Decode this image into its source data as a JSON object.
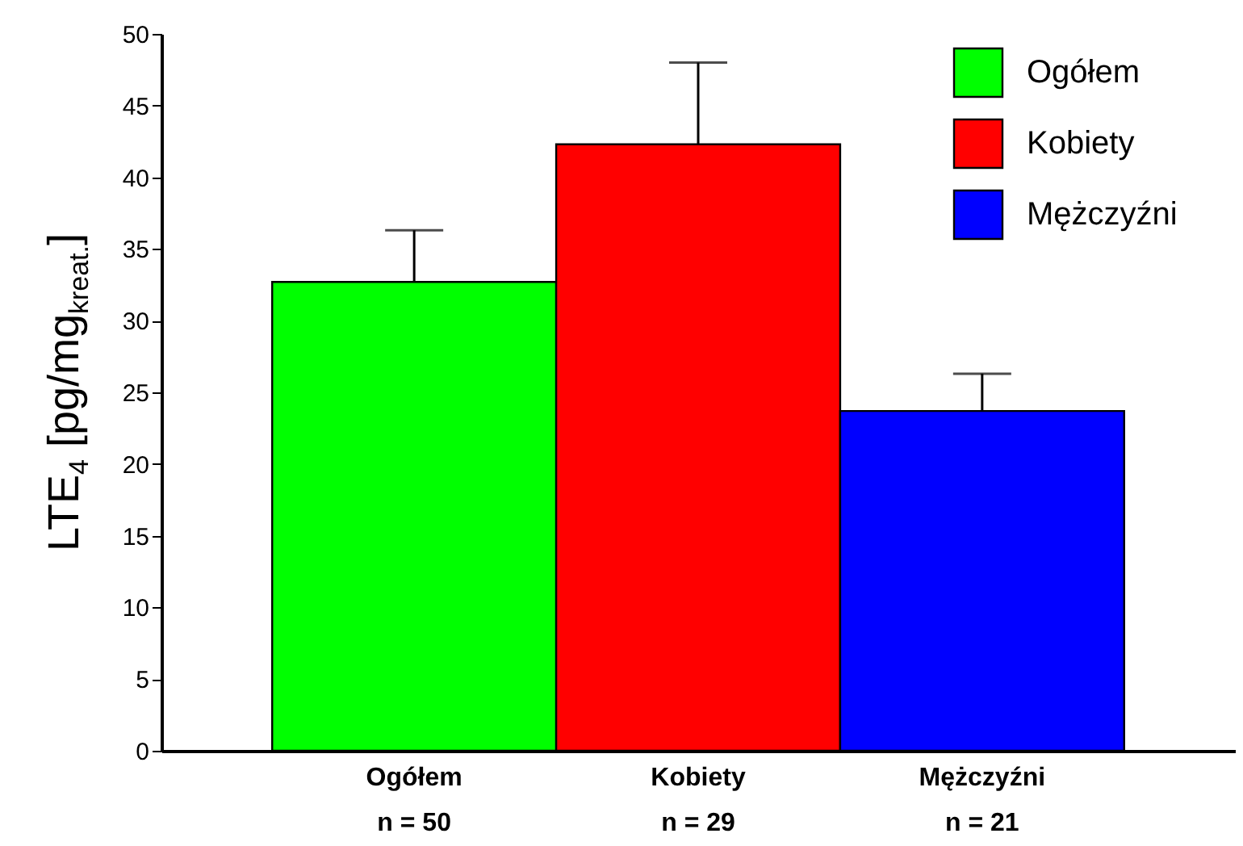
{
  "chart_data": {
    "type": "bar",
    "ylabel": "LTE$_{4}$ [pg/mg$_{kreat.}$]",
    "categories": [
      "Ogółem\nn = 50",
      "Kobiety\nn = 29",
      "Mężczyźni\nn = 21"
    ],
    "series": [
      {
        "name": "Ogółem",
        "color": "#00ff00",
        "values": [
          32.7,
          null,
          null
        ],
        "errors": [
          [
            32.7,
            36.3
          ],
          null,
          null
        ]
      },
      {
        "name": "Kobiety",
        "color": "#ff0000",
        "values": [
          null,
          42.3,
          null
        ],
        "errors": [
          null,
          [
            42.3,
            48
          ],
          null
        ]
      },
      {
        "name": "Mężczyźni",
        "color": "#0000ff",
        "values": [
          null,
          null,
          23.7
        ],
        "errors": [
          null,
          null,
          [
            23.7,
            26.3
          ]
        ]
      }
    ],
    "ylim": [
      0,
      50
    ],
    "yticks": [
      0,
      5,
      10,
      15,
      20,
      25,
      30,
      35,
      40,
      45,
      50
    ],
    "legend": "top right"
  }
}
